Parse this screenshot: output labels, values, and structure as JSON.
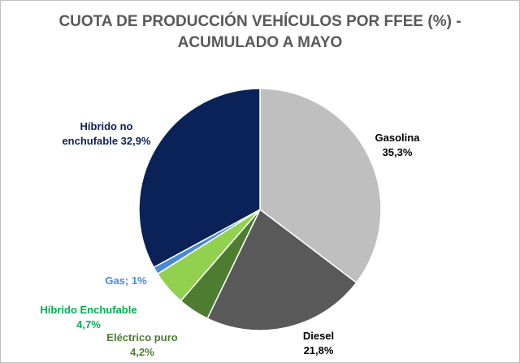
{
  "chart_data": {
    "type": "pie",
    "title_lines": [
      "CUOTA DE PRODUCCIÓN VEHÍCULOS POR FFEE (%) -",
      "ACUMULADO A MAYO"
    ],
    "slices": [
      {
        "name": "Gasolina",
        "value": 35.3,
        "color": "#bfbfbf",
        "label_lines": [
          "Gasolina",
          "35,3%"
        ],
        "label_color": "#000000"
      },
      {
        "name": "Diesel",
        "value": 21.8,
        "color": "#595959",
        "label_lines": [
          "Diesel",
          "21,8%"
        ],
        "label_color": "#000000"
      },
      {
        "name": "Eléctrico puro",
        "value": 4.2,
        "color": "#4e7d32",
        "label_lines": [
          "Eléctrico puro",
          "4,2%"
        ],
        "label_color": "#4e7d32"
      },
      {
        "name": "Híbrido Enchufable",
        "value": 4.7,
        "color": "#92d050",
        "label_lines": [
          "Híbrido Enchufable",
          "4,7%"
        ],
        "label_color": "#00b050"
      },
      {
        "name": "Gas",
        "value": 1,
        "color": "#4a8ad4",
        "label_lines": [
          "Gas; 1%"
        ],
        "label_color": "#4a8ad4"
      },
      {
        "name": "Híbrido no enchufable",
        "value": 32.9,
        "color": "#0a2257",
        "label_lines": [
          "Híbrido no",
          "enchufable 32,9%"
        ],
        "label_color": "#0a2257"
      }
    ],
    "start_angle_deg": 0,
    "direction": "clockwise",
    "legend": "none",
    "data_labels": "outside"
  }
}
